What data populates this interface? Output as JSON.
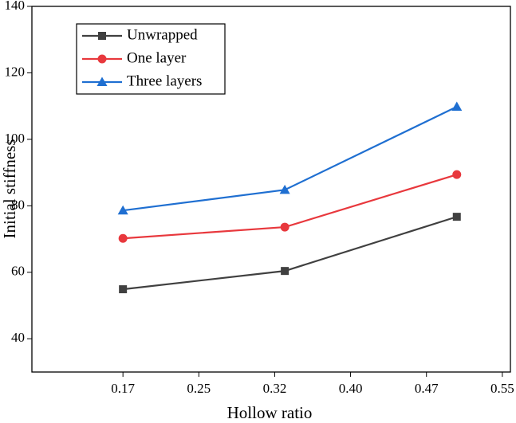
{
  "chart_data": {
    "type": "line",
    "xlabel": "Hollow ratio",
    "ylabel": "Initial stiffness",
    "x": [
      0.17,
      0.33,
      0.5
    ],
    "series": [
      {
        "name": "Unwrapped",
        "color": "#404040",
        "marker": "square",
        "values": [
          54.9,
          60.4,
          76.7
        ]
      },
      {
        "name": "One layer",
        "color": "#e8383d",
        "marker": "circle",
        "values": [
          70.2,
          73.6,
          89.4
        ]
      },
      {
        "name": "Three layers",
        "color": "#1f6fd1",
        "marker": "triangle",
        "values": [
          78.6,
          84.8,
          109.8
        ]
      }
    ],
    "xlim": [
      0.08,
      0.553
    ],
    "xticks": [
      0.17,
      {
        "value": 0.245,
        "label": "0.25"
      },
      0.32,
      {
        "value": 0.395,
        "label": "0.40"
      },
      0.47,
      {
        "value": 0.545,
        "label": "0.55"
      }
    ],
    "ylim": [
      30,
      140
    ],
    "yticks": [
      40,
      60,
      80,
      100,
      120,
      140
    ],
    "legend": "upper left"
  }
}
